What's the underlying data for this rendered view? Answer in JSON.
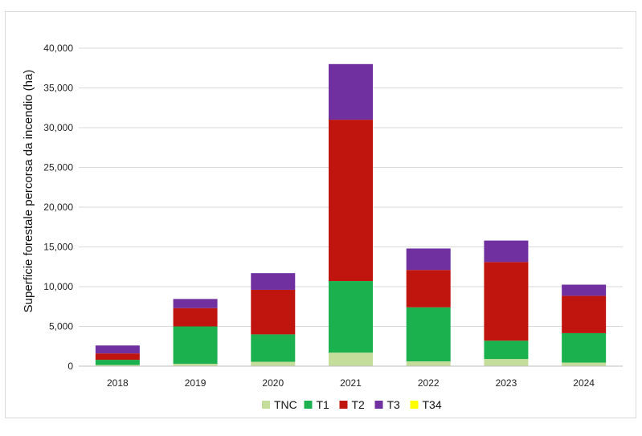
{
  "chart_data": {
    "type": "bar",
    "stacked": true,
    "ylabel": "Superficie forestale percorsa da incendio (ha)",
    "ylim": [
      0,
      40000
    ],
    "yticks": [
      "0",
      "5,000",
      "10,000",
      "15,000",
      "20,000",
      "25,000",
      "30,000",
      "35,000",
      "40,000"
    ],
    "ytick_values": [
      0,
      5000,
      10000,
      15000,
      20000,
      25000,
      30000,
      35000,
      40000
    ],
    "categories": [
      "2018",
      "2019",
      "2020",
      "2021",
      "2022",
      "2023",
      "2024"
    ],
    "series": [
      {
        "name": "TNC",
        "color": "#c5dd9b",
        "values": [
          150,
          300,
          550,
          1700,
          600,
          900,
          450
        ]
      },
      {
        "name": "T1",
        "color": "#1bb14e",
        "values": [
          650,
          4700,
          3450,
          9000,
          6800,
          2300,
          3700
        ]
      },
      {
        "name": "T2",
        "color": "#c0140f",
        "values": [
          800,
          2300,
          5600,
          20300,
          4700,
          9900,
          4700
        ]
      },
      {
        "name": "T3",
        "color": "#7030a0",
        "values": [
          1000,
          1150,
          2100,
          7000,
          2700,
          2700,
          1400
        ]
      },
      {
        "name": "T34",
        "color": "#ffff00",
        "values": [
          0,
          0,
          0,
          0,
          0,
          0,
          0
        ]
      }
    ],
    "grid": true,
    "legend_position": "bottom"
  }
}
